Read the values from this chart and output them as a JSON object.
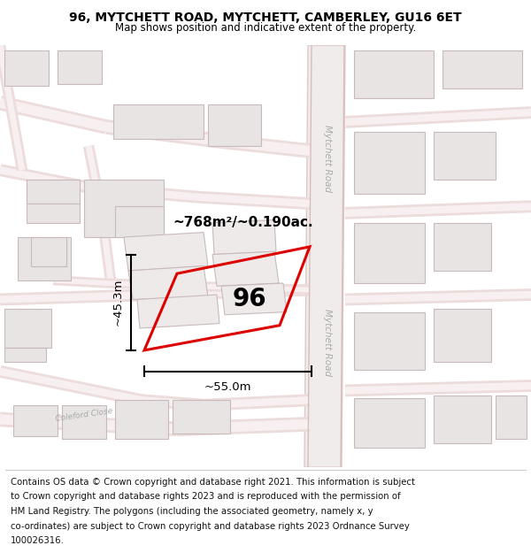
{
  "title_line1": "96, MYTCHETT ROAD, MYTCHETT, CAMBERLEY, GU16 6ET",
  "title_line2": "Map shows position and indicative extent of the property.",
  "footer_lines": [
    "Contains OS data © Crown copyright and database right 2021. This information is subject",
    "to Crown copyright and database rights 2023 and is reproduced with the permission of",
    "HM Land Registry. The polygons (including the associated geometry, namely x, y",
    "co-ordinates) are subject to Crown copyright and database rights 2023 Ordnance Survey",
    "100026316."
  ],
  "map_bg": "#faf8f8",
  "road_outer": "#f0c8c8",
  "road_inner": "#faf5f5",
  "road_center": "#f5efef",
  "building_fill": "#e8e4e4",
  "building_edge": "#c8baba",
  "highlight_color": "#dd0000",
  "area_text": "~768m²/~0.190ac.",
  "label_96": "96",
  "dim_width": "~55.0m",
  "dim_height": "~45.3m",
  "road_label": "Mytchett Road",
  "road_label_coleford": "Coleford Close"
}
